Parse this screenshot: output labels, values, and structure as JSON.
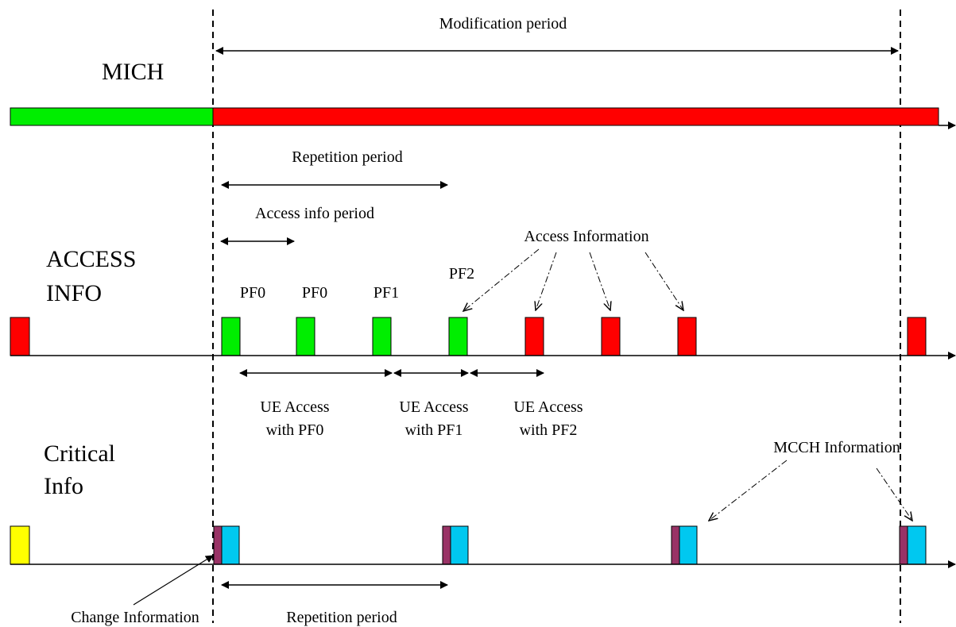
{
  "rows": {
    "mich": "MICH",
    "access_line1": "ACCESS",
    "access_line2": "INFO",
    "critical_line1": "Critical",
    "critical_line2": "Info"
  },
  "labels": {
    "modification_period": "Modification period",
    "repetition_period_top": "Repetition period",
    "access_info_period": "Access info period",
    "access_information": "Access Information",
    "pf_labels": [
      "PF0",
      "PF0",
      "PF1",
      "PF2"
    ],
    "ue_access": [
      {
        "line1": "UE Access",
        "line2": "with PF0"
      },
      {
        "line1": "UE Access",
        "line2": "with PF1"
      },
      {
        "line1": "UE Access",
        "line2": "with PF2"
      }
    ],
    "mcch_information": "MCCH Information",
    "change_information": "Change Information",
    "repetition_period_bottom": "Repetition period"
  },
  "colors": {
    "green": "#00ee00",
    "red": "#ff0000",
    "yellow": "#ffff00",
    "cyan": "#00c8f0",
    "maroon": "#993366"
  }
}
